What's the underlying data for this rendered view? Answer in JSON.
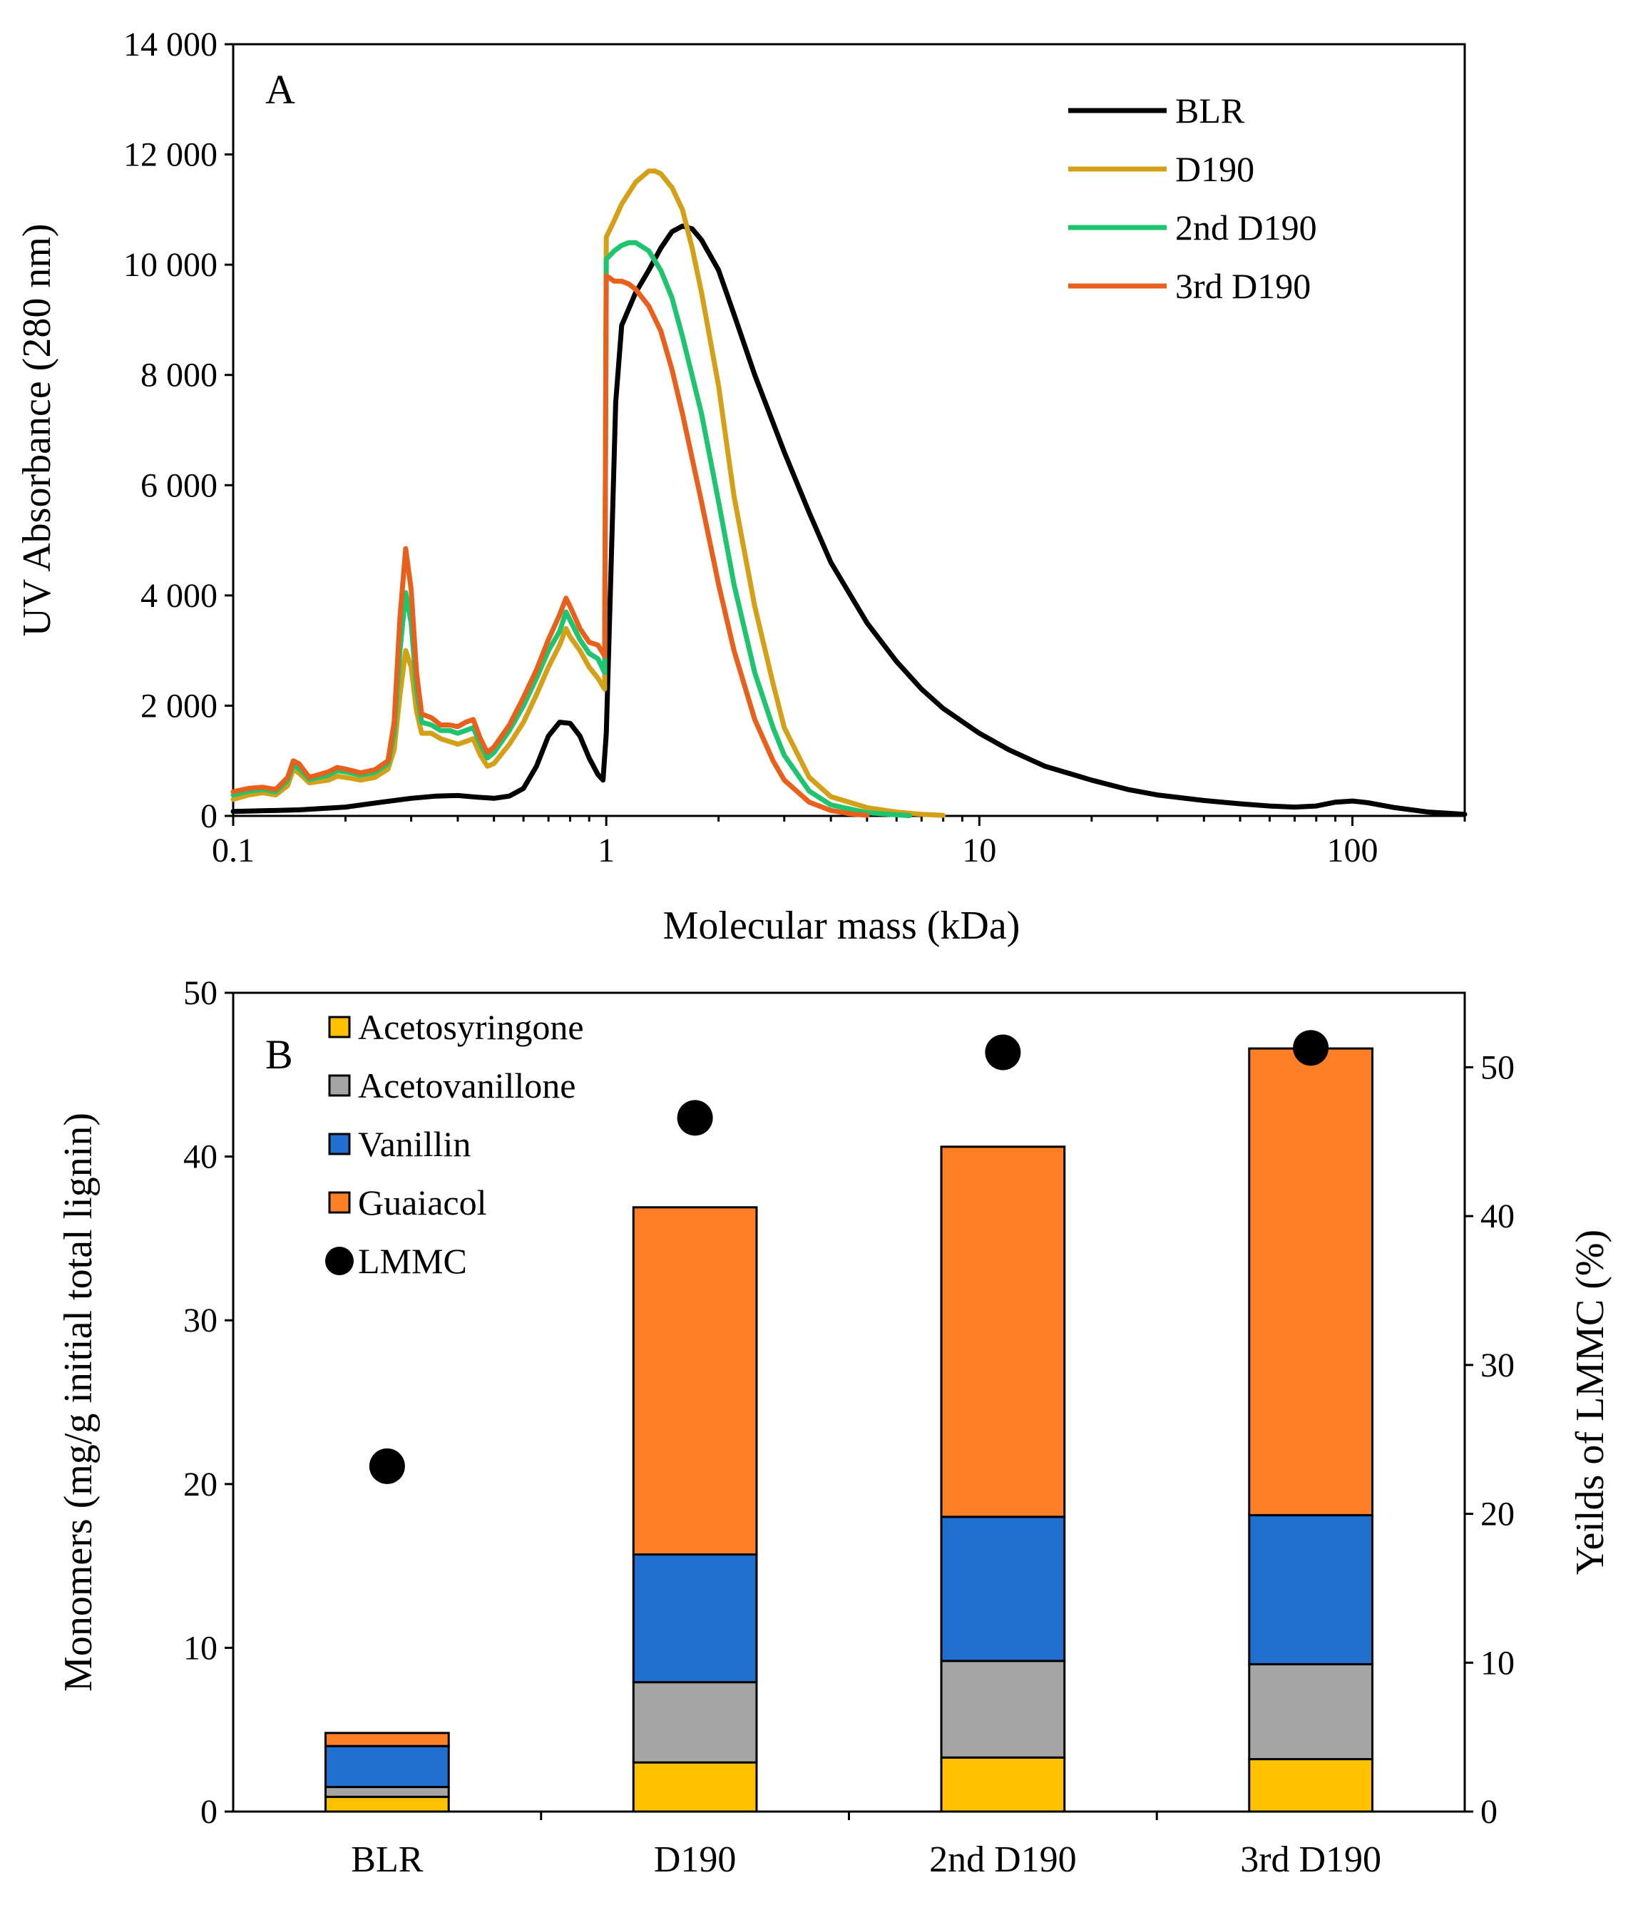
{
  "chart_data": [
    {
      "type": "line",
      "panel_label": "A",
      "xlabel": "Molecular mass (kDa)",
      "ylabel": "UV Absorbance (280 nm)",
      "xscale": "log",
      "xlim": [
        0.1,
        200
      ],
      "ylim": [
        0,
        14000
      ],
      "xticks": [
        0.1,
        1,
        10,
        100
      ],
      "xtick_labels": [
        "0.1",
        "1",
        "10",
        "100"
      ],
      "yticks": [
        0,
        2000,
        4000,
        6000,
        8000,
        10000,
        12000,
        14000
      ],
      "ytick_labels": [
        "0",
        "2 000",
        "4 000",
        "6 000",
        "8 000",
        "10 000",
        "12 000",
        "14 000"
      ],
      "legend_position": "top-right",
      "series": [
        {
          "name": "BLR",
          "color": "#000000",
          "points": [
            [
              0.1,
              80
            ],
            [
              0.15,
              110
            ],
            [
              0.2,
              160
            ],
            [
              0.25,
              250
            ],
            [
              0.3,
              320
            ],
            [
              0.35,
              360
            ],
            [
              0.4,
              370
            ],
            [
              0.45,
              340
            ],
            [
              0.5,
              320
            ],
            [
              0.55,
              360
            ],
            [
              0.6,
              500
            ],
            [
              0.65,
              900
            ],
            [
              0.7,
              1450
            ],
            [
              0.75,
              1700
            ],
            [
              0.8,
              1680
            ],
            [
              0.85,
              1450
            ],
            [
              0.9,
              1050
            ],
            [
              0.95,
              750
            ],
            [
              0.98,
              650
            ],
            [
              1.0,
              1500
            ],
            [
              1.03,
              4500
            ],
            [
              1.06,
              7500
            ],
            [
              1.1,
              8900
            ],
            [
              1.2,
              9500
            ],
            [
              1.3,
              9900
            ],
            [
              1.4,
              10300
            ],
            [
              1.5,
              10600
            ],
            [
              1.6,
              10700
            ],
            [
              1.7,
              10650
            ],
            [
              1.8,
              10450
            ],
            [
              2.0,
              9900
            ],
            [
              2.2,
              9100
            ],
            [
              2.5,
              8000
            ],
            [
              3.0,
              6600
            ],
            [
              3.5,
              5500
            ],
            [
              4.0,
              4600
            ],
            [
              5.0,
              3500
            ],
            [
              6.0,
              2800
            ],
            [
              7.0,
              2300
            ],
            [
              8.0,
              1950
            ],
            [
              10.0,
              1500
            ],
            [
              12.0,
              1200
            ],
            [
              15.0,
              900
            ],
            [
              20.0,
              650
            ],
            [
              25.0,
              480
            ],
            [
              30.0,
              380
            ],
            [
              40.0,
              280
            ],
            [
              50.0,
              220
            ],
            [
              60.0,
              180
            ],
            [
              70.0,
              160
            ],
            [
              80.0,
              180
            ],
            [
              90.0,
              250
            ],
            [
              100.0,
              270
            ],
            [
              110.0,
              240
            ],
            [
              130.0,
              150
            ],
            [
              160.0,
              70
            ],
            [
              200.0,
              30
            ]
          ]
        },
        {
          "name": "D190",
          "color": "#D4A017",
          "points": [
            [
              0.1,
              300
            ],
            [
              0.11,
              380
            ],
            [
              0.12,
              420
            ],
            [
              0.13,
              380
            ],
            [
              0.14,
              550
            ],
            [
              0.145,
              850
            ],
            [
              0.15,
              780
            ],
            [
              0.16,
              600
            ],
            [
              0.18,
              650
            ],
            [
              0.19,
              720
            ],
            [
              0.2,
              700
            ],
            [
              0.22,
              650
            ],
            [
              0.24,
              700
            ],
            [
              0.26,
              850
            ],
            [
              0.27,
              1200
            ],
            [
              0.28,
              2200
            ],
            [
              0.29,
              3000
            ],
            [
              0.3,
              2700
            ],
            [
              0.31,
              1900
            ],
            [
              0.32,
              1500
            ],
            [
              0.34,
              1500
            ],
            [
              0.36,
              1400
            ],
            [
              0.38,
              1350
            ],
            [
              0.4,
              1300
            ],
            [
              0.42,
              1350
            ],
            [
              0.44,
              1400
            ],
            [
              0.46,
              1100
            ],
            [
              0.48,
              900
            ],
            [
              0.5,
              950
            ],
            [
              0.55,
              1300
            ],
            [
              0.6,
              1700
            ],
            [
              0.65,
              2200
            ],
            [
              0.7,
              2700
            ],
            [
              0.75,
              3100
            ],
            [
              0.78,
              3400
            ],
            [
              0.8,
              3250
            ],
            [
              0.85,
              3000
            ],
            [
              0.9,
              2700
            ],
            [
              0.95,
              2500
            ],
            [
              0.99,
              2300
            ],
            [
              1.0,
              10500
            ],
            [
              1.05,
              10800
            ],
            [
              1.1,
              11100
            ],
            [
              1.2,
              11500
            ],
            [
              1.3,
              11700
            ],
            [
              1.35,
              11700
            ],
            [
              1.4,
              11650
            ],
            [
              1.5,
              11400
            ],
            [
              1.6,
              11000
            ],
            [
              1.7,
              10300
            ],
            [
              1.8,
              9500
            ],
            [
              2.0,
              7800
            ],
            [
              2.2,
              5800
            ],
            [
              2.5,
              3800
            ],
            [
              2.8,
              2400
            ],
            [
              3.0,
              1600
            ],
            [
              3.5,
              700
            ],
            [
              4.0,
              350
            ],
            [
              5.0,
              150
            ],
            [
              6.0,
              70
            ],
            [
              7.0,
              30
            ],
            [
              8.0,
              10
            ]
          ]
        },
        {
          "name": "2nd D190",
          "color": "#1EC46E",
          "points": [
            [
              0.1,
              380
            ],
            [
              0.11,
              450
            ],
            [
              0.12,
              480
            ],
            [
              0.13,
              440
            ],
            [
              0.14,
              650
            ],
            [
              0.145,
              930
            ],
            [
              0.15,
              860
            ],
            [
              0.16,
              660
            ],
            [
              0.18,
              740
            ],
            [
              0.19,
              820
            ],
            [
              0.2,
              800
            ],
            [
              0.22,
              740
            ],
            [
              0.24,
              790
            ],
            [
              0.26,
              950
            ],
            [
              0.27,
              1500
            ],
            [
              0.28,
              3000
            ],
            [
              0.29,
              4050
            ],
            [
              0.3,
              3500
            ],
            [
              0.31,
              2300
            ],
            [
              0.32,
              1700
            ],
            [
              0.34,
              1650
            ],
            [
              0.36,
              1550
            ],
            [
              0.38,
              1550
            ],
            [
              0.4,
              1500
            ],
            [
              0.42,
              1550
            ],
            [
              0.44,
              1600
            ],
            [
              0.46,
              1300
            ],
            [
              0.48,
              1050
            ],
            [
              0.5,
              1150
            ],
            [
              0.55,
              1550
            ],
            [
              0.6,
              2000
            ],
            [
              0.65,
              2500
            ],
            [
              0.7,
              3000
            ],
            [
              0.75,
              3350
            ],
            [
              0.78,
              3700
            ],
            [
              0.8,
              3550
            ],
            [
              0.85,
              3200
            ],
            [
              0.9,
              2950
            ],
            [
              0.95,
              2850
            ],
            [
              0.99,
              2600
            ],
            [
              1.0,
              10100
            ],
            [
              1.05,
              10250
            ],
            [
              1.1,
              10350
            ],
            [
              1.15,
              10400
            ],
            [
              1.2,
              10400
            ],
            [
              1.3,
              10250
            ],
            [
              1.4,
              9900
            ],
            [
              1.5,
              9400
            ],
            [
              1.6,
              8700
            ],
            [
              1.8,
              7300
            ],
            [
              2.0,
              5700
            ],
            [
              2.2,
              4200
            ],
            [
              2.5,
              2600
            ],
            [
              2.8,
              1600
            ],
            [
              3.0,
              1100
            ],
            [
              3.5,
              450
            ],
            [
              4.0,
              200
            ],
            [
              5.0,
              60
            ],
            [
              6.0,
              20
            ],
            [
              6.5,
              5
            ]
          ]
        },
        {
          "name": "3rd D190",
          "color": "#E8601C",
          "points": [
            [
              0.1,
              440
            ],
            [
              0.11,
              500
            ],
            [
              0.12,
              520
            ],
            [
              0.13,
              480
            ],
            [
              0.14,
              700
            ],
            [
              0.145,
              1000
            ],
            [
              0.15,
              950
            ],
            [
              0.16,
              700
            ],
            [
              0.18,
              800
            ],
            [
              0.19,
              880
            ],
            [
              0.2,
              850
            ],
            [
              0.22,
              780
            ],
            [
              0.24,
              840
            ],
            [
              0.26,
              1000
            ],
            [
              0.27,
              1700
            ],
            [
              0.28,
              3600
            ],
            [
              0.29,
              4850
            ],
            [
              0.3,
              4100
            ],
            [
              0.31,
              2600
            ],
            [
              0.32,
              1850
            ],
            [
              0.34,
              1780
            ],
            [
              0.36,
              1650
            ],
            [
              0.38,
              1650
            ],
            [
              0.4,
              1620
            ],
            [
              0.42,
              1700
            ],
            [
              0.44,
              1750
            ],
            [
              0.46,
              1400
            ],
            [
              0.48,
              1150
            ],
            [
              0.5,
              1250
            ],
            [
              0.55,
              1650
            ],
            [
              0.6,
              2150
            ],
            [
              0.65,
              2650
            ],
            [
              0.7,
              3200
            ],
            [
              0.75,
              3650
            ],
            [
              0.78,
              3950
            ],
            [
              0.8,
              3800
            ],
            [
              0.85,
              3400
            ],
            [
              0.9,
              3150
            ],
            [
              0.95,
              3100
            ],
            [
              0.99,
              2900
            ],
            [
              1.0,
              9800
            ],
            [
              1.05,
              9700
            ],
            [
              1.1,
              9700
            ],
            [
              1.15,
              9650
            ],
            [
              1.2,
              9550
            ],
            [
              1.3,
              9250
            ],
            [
              1.4,
              8800
            ],
            [
              1.5,
              8100
            ],
            [
              1.6,
              7300
            ],
            [
              1.8,
              5700
            ],
            [
              2.0,
              4200
            ],
            [
              2.2,
              3000
            ],
            [
              2.5,
              1750
            ],
            [
              2.8,
              1000
            ],
            [
              3.0,
              650
            ],
            [
              3.5,
              250
            ],
            [
              4.0,
              100
            ],
            [
              4.5,
              40
            ],
            [
              5.0,
              10
            ]
          ]
        }
      ]
    },
    {
      "type": "bar",
      "stacked": true,
      "panel_label": "B",
      "categories": [
        "BLR",
        "D190",
        "2nd D190",
        "3rd D190"
      ],
      "ylabel": "Monomers (mg/g initial total lignin)",
      "y2label": "Yeilds of LMMC (%)",
      "ylim": [
        0,
        50
      ],
      "y2lim": [
        0,
        55
      ],
      "yticks": [
        0,
        10,
        20,
        30,
        40,
        50
      ],
      "ytick_labels": [
        "0",
        "10",
        "20",
        "30",
        "40",
        "50"
      ],
      "y2ticks": [
        0,
        10,
        20,
        30,
        40,
        50
      ],
      "y2tick_labels": [
        "0",
        "10",
        "20",
        "30",
        "40",
        "50"
      ],
      "legend_position": "top-left",
      "series": [
        {
          "name": "Acetosyringone",
          "color": "#FFC000",
          "values": [
            0.9,
            3.0,
            3.3,
            3.2
          ]
        },
        {
          "name": "Acetovanillone",
          "color": "#A5A5A5",
          "values": [
            0.6,
            4.9,
            5.9,
            5.8
          ]
        },
        {
          "name": "Vanillin",
          "color": "#1F6FD1",
          "values": [
            2.5,
            7.8,
            8.8,
            9.1
          ]
        },
        {
          "name": "Guaiacol",
          "color": "#FF7F27",
          "values": [
            0.8,
            21.2,
            22.6,
            28.5
          ]
        }
      ],
      "scatter_series": {
        "name": "LMMC",
        "axis": "y2",
        "color": "#000000",
        "values": [
          23.2,
          46.6,
          51.0,
          51.3
        ]
      }
    }
  ]
}
